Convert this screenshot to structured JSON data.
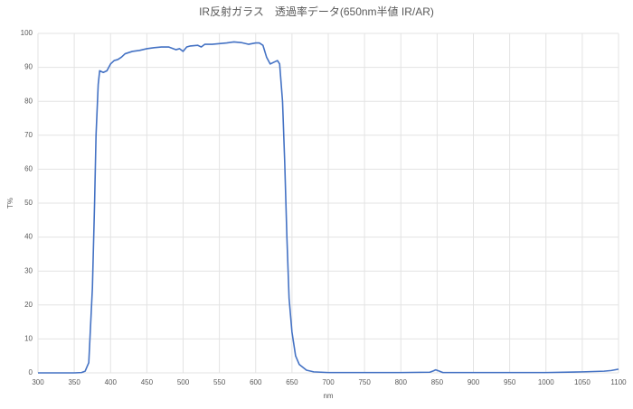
{
  "chart_data": {
    "type": "line",
    "title": "IR反射ガラス　透過率データ(650nm半値 IR/AR)",
    "x_label": "nm",
    "y_label": "T%",
    "color": "#4472c4",
    "x": [
      300,
      350,
      360,
      365,
      370,
      375,
      378,
      380,
      383,
      385,
      390,
      395,
      400,
      405,
      410,
      415,
      420,
      430,
      440,
      450,
      460,
      470,
      480,
      490,
      495,
      500,
      505,
      510,
      520,
      525,
      530,
      540,
      550,
      560,
      570,
      580,
      590,
      600,
      605,
      610,
      615,
      620,
      625,
      630,
      633,
      637,
      640,
      643,
      646,
      650,
      655,
      660,
      670,
      680,
      700,
      750,
      800,
      840,
      845,
      848,
      852,
      858,
      880,
      900,
      1000,
      1050,
      1080,
      1090,
      1100
    ],
    "values": [
      0,
      0,
      0.1,
      0.5,
      3,
      25,
      50,
      70,
      85,
      89,
      88.5,
      89,
      91,
      92,
      92.3,
      93,
      94,
      94.7,
      95,
      95.5,
      95.8,
      96,
      96,
      95.2,
      95.5,
      94.7,
      96,
      96.3,
      96.5,
      96,
      96.8,
      96.8,
      97,
      97.2,
      97.5,
      97.3,
      96.8,
      97.2,
      97.2,
      96.5,
      93,
      91,
      91.5,
      92,
      91,
      80,
      62,
      40,
      22,
      12,
      5,
      2.5,
      0.8,
      0.3,
      0.1,
      0.1,
      0.1,
      0.2,
      0.6,
      0.9,
      0.6,
      0.1,
      0.1,
      0.1,
      0.1,
      0.3,
      0.5,
      0.7,
      1.1
    ],
    "xlim": [
      300,
      1100
    ],
    "xticks": [
      300,
      350,
      400,
      450,
      500,
      550,
      600,
      650,
      700,
      750,
      800,
      850,
      900,
      950,
      1000,
      1050,
      1100
    ],
    "ylim": [
      0,
      100
    ],
    "yticks": [
      0,
      10,
      20,
      30,
      40,
      50,
      60,
      70,
      80,
      90,
      100
    ],
    "grid": true
  }
}
